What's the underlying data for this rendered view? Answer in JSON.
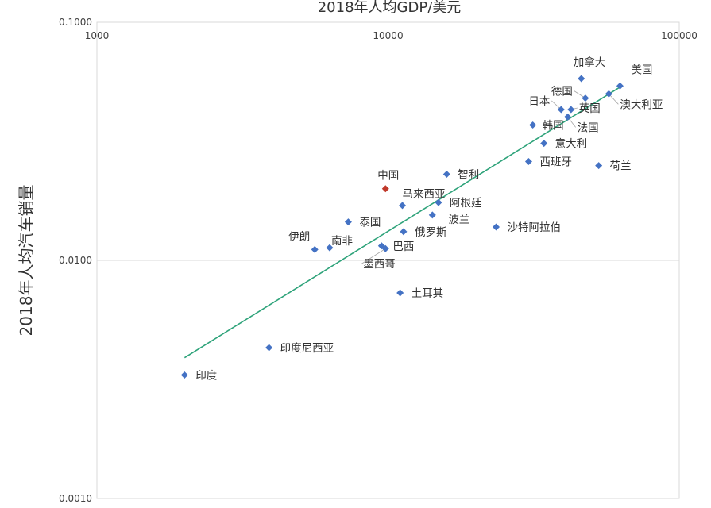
{
  "chart_data": {
    "type": "scatter",
    "title": "2018年人均GDP/美元",
    "xlabel": "",
    "ylabel": "2018年人均汽车销量",
    "x_scale": "log",
    "y_scale": "log",
    "xlim": [
      1000,
      100000
    ],
    "ylim": [
      0.001,
      0.1
    ],
    "x_ticks": [
      "1000",
      "10000",
      "100000"
    ],
    "y_ticks": [
      "0.1000",
      "0.0100",
      "0.0010"
    ],
    "x_axis_position": "top",
    "grid": true,
    "legend": "none",
    "marker_color": "#4472c4",
    "highlight_color": "#c0392b",
    "trendline_color": "#2ea37a",
    "trendline": {
      "x": [
        2000,
        62000
      ],
      "y": [
        0.0039,
        0.053
      ]
    },
    "points": [
      {
        "name": "美国",
        "x": 62600,
        "y": 0.054
      },
      {
        "name": "加拿大",
        "x": 46100,
        "y": 0.058
      },
      {
        "name": "德国",
        "x": 47600,
        "y": 0.048
      },
      {
        "name": "澳大利亚",
        "x": 57300,
        "y": 0.05
      },
      {
        "name": "日本",
        "x": 39300,
        "y": 0.043
      },
      {
        "name": "英国",
        "x": 42500,
        "y": 0.043
      },
      {
        "name": "法国",
        "x": 41400,
        "y": 0.04
      },
      {
        "name": "韩国",
        "x": 31400,
        "y": 0.037
      },
      {
        "name": "意大利",
        "x": 34300,
        "y": 0.031
      },
      {
        "name": "西班牙",
        "x": 30400,
        "y": 0.026
      },
      {
        "name": "荷兰",
        "x": 52900,
        "y": 0.025
      },
      {
        "name": "智利",
        "x": 15900,
        "y": 0.023
      },
      {
        "name": "中国",
        "x": 9800,
        "y": 0.02,
        "highlight": true
      },
      {
        "name": "马来西亚",
        "x": 11200,
        "y": 0.017
      },
      {
        "name": "阿根廷",
        "x": 14900,
        "y": 0.0175
      },
      {
        "name": "泰国",
        "x": 7300,
        "y": 0.0145
      },
      {
        "name": "波兰",
        "x": 14200,
        "y": 0.0155
      },
      {
        "name": "俄罗斯",
        "x": 11300,
        "y": 0.0132
      },
      {
        "name": "沙特阿拉伯",
        "x": 23500,
        "y": 0.0138
      },
      {
        "name": "伊朗",
        "x": 5600,
        "y": 0.0111
      },
      {
        "name": "南非",
        "x": 6300,
        "y": 0.0113
      },
      {
        "name": "巴西",
        "x": 9500,
        "y": 0.0115
      },
      {
        "name": "墨西哥",
        "x": 9800,
        "y": 0.0112
      },
      {
        "name": "土耳其",
        "x": 11000,
        "y": 0.0073
      },
      {
        "name": "印度尼西亚",
        "x": 3900,
        "y": 0.0043
      },
      {
        "name": "印度",
        "x": 2000,
        "y": 0.0033
      }
    ]
  }
}
